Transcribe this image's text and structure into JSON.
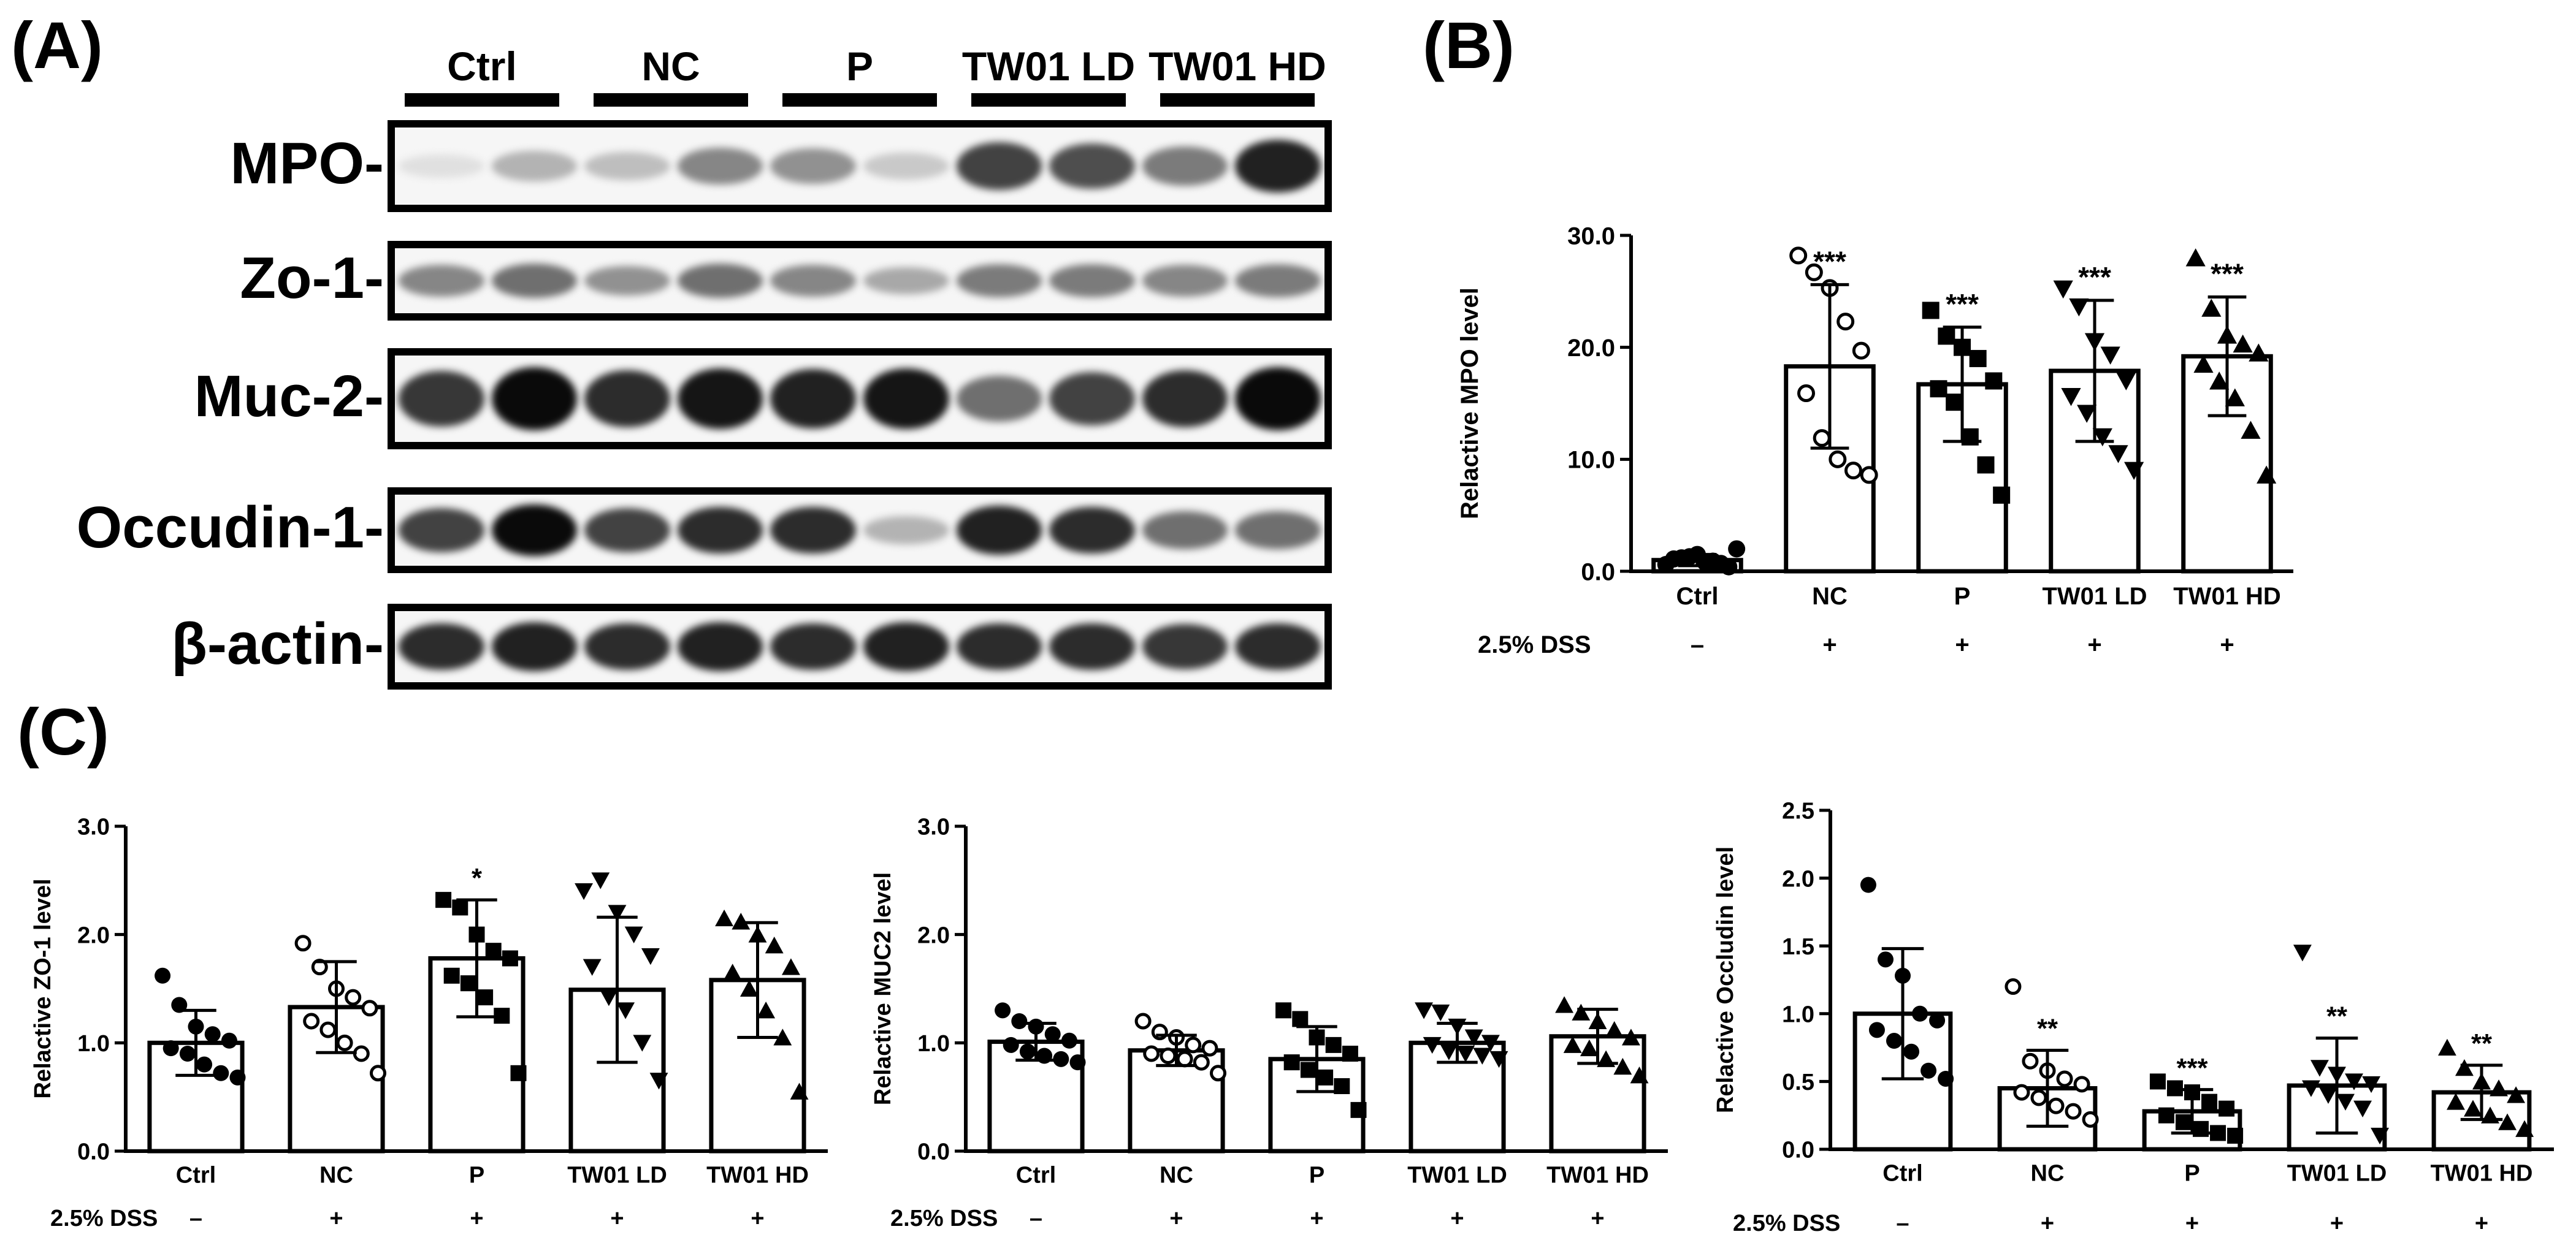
{
  "panels": {
    "A": "(A)",
    "B": "(B)",
    "C": "(C)"
  },
  "western_blot": {
    "groups": [
      "Ctrl",
      "NC",
      "P",
      "TW01  LD",
      "TW01  HD"
    ],
    "rows": [
      {
        "label": "MPO-",
        "intensities": [
          0.05,
          0.25,
          0.2,
          0.45,
          0.4,
          0.15,
          0.75,
          0.7,
          0.5,
          0.9
        ]
      },
      {
        "label": "Zo-1-",
        "intensities": [
          0.45,
          0.55,
          0.4,
          0.55,
          0.45,
          0.3,
          0.5,
          0.5,
          0.45,
          0.5
        ]
      },
      {
        "label": "Muc-2-",
        "intensities": [
          0.8,
          1.0,
          0.85,
          0.95,
          0.9,
          0.95,
          0.55,
          0.75,
          0.85,
          1.0
        ]
      },
      {
        "label": "Occudin-1-",
        "intensities": [
          0.75,
          1.0,
          0.75,
          0.85,
          0.85,
          0.25,
          0.9,
          0.85,
          0.55,
          0.55
        ]
      },
      {
        "label": "β-actin-",
        "intensities": [
          0.85,
          0.9,
          0.85,
          0.9,
          0.85,
          0.9,
          0.85,
          0.85,
          0.8,
          0.85
        ]
      }
    ]
  },
  "colors": {
    "ink": "#000000",
    "bar_fill": "#ffffff",
    "blot_bg": "#f6f6f6"
  },
  "chart_data": [
    {
      "id": "B",
      "type": "bar",
      "categories": [
        "Ctrl",
        "NC",
        "P",
        "TW01 LD",
        "TW01 HD"
      ],
      "treatment_label": "2.5% DSS",
      "treatment": [
        "–",
        "+",
        "+",
        "+",
        "+"
      ],
      "ylabel": "Relactive MPO level",
      "ylim": [
        0,
        30
      ],
      "yticks": [
        "0.0",
        "10.0",
        "20.0",
        "30.0"
      ],
      "ytick_values": [
        0,
        10,
        20,
        30
      ],
      "means": [
        1.0,
        18.3,
        16.7,
        17.9,
        19.2
      ],
      "sd": [
        0.5,
        7.3,
        5.1,
        6.3,
        5.3
      ],
      "significance": [
        "",
        "***",
        "***",
        "***",
        "***"
      ],
      "markers": [
        "circle",
        "circle-open",
        "square",
        "triangle-down",
        "triangle-up"
      ],
      "points": [
        [
          0.6,
          1.2,
          1.5,
          0.9,
          0.4,
          1.1,
          1.3,
          0.8,
          0.7,
          2.0
        ],
        [
          28.2,
          26.7,
          25.3,
          22.3,
          19.7,
          15.9,
          11.9,
          10.0,
          9.0,
          8.6
        ],
        [
          23.3,
          21.0,
          20.0,
          19.0,
          17.0,
          16.3,
          15.1,
          12.0,
          9.5,
          6.8
        ],
        [
          25.2,
          23.6,
          20.5,
          19.3,
          17.0,
          15.6,
          14.1,
          12.0,
          10.5,
          9.0
        ],
        [
          28.0,
          23.5,
          21.1,
          20.3,
          19.5,
          18.5,
          17.0,
          15.5,
          12.6,
          8.6
        ]
      ]
    },
    {
      "id": "C1",
      "type": "bar",
      "categories": [
        "Ctrl",
        "NC",
        "P",
        "TW01 LD",
        "TW01 HD"
      ],
      "treatment_label": "2.5% DSS",
      "treatment": [
        "–",
        "+",
        "+",
        "+",
        "+"
      ],
      "ylabel": "Relactive ZO-1 level",
      "ylim": [
        0,
        3
      ],
      "yticks": [
        "0.0",
        "1.0",
        "2.0",
        "3.0"
      ],
      "ytick_values": [
        0,
        1,
        2,
        3
      ],
      "means": [
        1.0,
        1.33,
        1.78,
        1.49,
        1.58
      ],
      "sd": [
        0.3,
        0.42,
        0.54,
        0.67,
        0.53
      ],
      "significance": [
        "",
        "",
        "*",
        "",
        ""
      ],
      "markers": [
        "circle",
        "circle-open",
        "square",
        "triangle-down",
        "triangle-up"
      ],
      "points": [
        [
          1.62,
          1.35,
          1.15,
          1.08,
          1.02,
          0.95,
          0.9,
          0.8,
          0.72,
          0.68
        ],
        [
          1.92,
          1.7,
          1.5,
          1.42,
          1.32,
          1.2,
          1.12,
          1.0,
          0.9,
          0.72
        ],
        [
          2.32,
          2.25,
          2.0,
          1.85,
          1.78,
          1.62,
          1.55,
          1.42,
          1.25,
          0.72
        ],
        [
          2.4,
          2.5,
          2.2,
          2.0,
          1.8,
          1.7,
          1.42,
          1.3,
          1.0,
          0.65
        ],
        [
          2.15,
          2.12,
          2.0,
          1.9,
          1.7,
          1.65,
          1.5,
          1.3,
          1.05,
          0.55
        ]
      ]
    },
    {
      "id": "C2",
      "type": "bar",
      "categories": [
        "Ctrl",
        "NC",
        "P",
        "TW01 LD",
        "TW01 HD"
      ],
      "treatment_label": "2.5% DSS",
      "treatment": [
        "–",
        "+",
        "+",
        "+",
        "+"
      ],
      "ylabel": "Relactive MUC2 level",
      "ylim": [
        0,
        3
      ],
      "yticks": [
        "0.0",
        "1.0",
        "2.0",
        "3.0"
      ],
      "ytick_values": [
        0,
        1,
        2,
        3
      ],
      "means": [
        1.01,
        0.93,
        0.85,
        1.0,
        1.06
      ],
      "sd": [
        0.17,
        0.14,
        0.3,
        0.18,
        0.25
      ],
      "significance": [
        "",
        "",
        "",
        "",
        ""
      ],
      "markers": [
        "circle",
        "circle-open",
        "square",
        "triangle-down",
        "triangle-up"
      ],
      "points": [
        [
          1.3,
          1.2,
          1.15,
          1.08,
          1.02,
          0.98,
          0.92,
          0.88,
          0.85,
          0.82
        ],
        [
          1.2,
          1.1,
          1.05,
          0.98,
          0.95,
          0.9,
          0.88,
          0.85,
          0.82,
          0.72
        ],
        [
          1.3,
          1.22,
          1.05,
          0.98,
          0.9,
          0.82,
          0.75,
          0.68,
          0.6,
          0.38
        ],
        [
          1.3,
          1.28,
          1.15,
          1.05,
          1.0,
          0.98,
          0.92,
          0.9,
          0.88,
          0.85
        ],
        [
          1.35,
          1.28,
          1.2,
          1.12,
          1.05,
          0.98,
          0.95,
          0.85,
          0.78,
          0.7
        ]
      ]
    },
    {
      "id": "C3",
      "type": "bar",
      "categories": [
        "Ctrl",
        "NC",
        "P",
        "TW01 LD",
        "TW01 HD"
      ],
      "treatment_label": "2.5% DSS",
      "treatment": [
        "–",
        "+",
        "+",
        "+",
        "+"
      ],
      "ylabel": "Relactive Occludin level",
      "ylim": [
        0,
        2.5
      ],
      "yticks": [
        "0.0",
        "0.5",
        "1.0",
        "1.5",
        "2.0",
        "2.5"
      ],
      "ytick_values": [
        0,
        0.5,
        1.0,
        1.5,
        2.0,
        2.5
      ],
      "means": [
        1.0,
        0.45,
        0.28,
        0.47,
        0.42
      ],
      "sd": [
        0.48,
        0.28,
        0.16,
        0.35,
        0.2
      ],
      "significance": [
        "",
        "**",
        "***",
        "**",
        "**"
      ],
      "markers": [
        "circle",
        "circle-open",
        "square",
        "triangle-down",
        "triangle-up"
      ],
      "points": [
        [
          1.95,
          1.4,
          1.28,
          1.0,
          0.95,
          0.88,
          0.8,
          0.72,
          0.58,
          0.52
        ],
        [
          1.2,
          0.65,
          0.58,
          0.52,
          0.48,
          0.42,
          0.38,
          0.32,
          0.28,
          0.22
        ],
        [
          0.5,
          0.45,
          0.42,
          0.35,
          0.3,
          0.25,
          0.2,
          0.15,
          0.12,
          0.1
        ],
        [
          1.45,
          0.6,
          0.55,
          0.5,
          0.48,
          0.45,
          0.4,
          0.35,
          0.3,
          0.1
        ],
        [
          0.75,
          0.6,
          0.5,
          0.45,
          0.4,
          0.35,
          0.3,
          0.25,
          0.2,
          0.15
        ]
      ]
    }
  ]
}
